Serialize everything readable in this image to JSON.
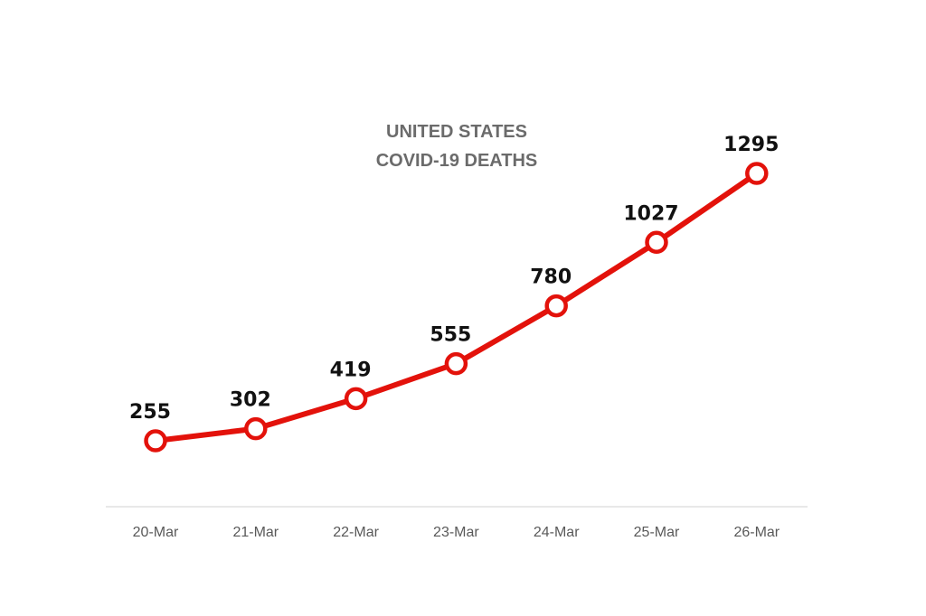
{
  "chart_data": {
    "type": "line",
    "title": [
      "UNITED STATES",
      "COVID-19 DEATHS"
    ],
    "xlabel": "",
    "ylabel": "",
    "categories": [
      "20-Mar",
      "21-Mar",
      "22-Mar",
      "23-Mar",
      "24-Mar",
      "25-Mar",
      "26-Mar"
    ],
    "series": [
      {
        "values": [
          255,
          302,
          419,
          555,
          780,
          1027,
          1295
        ]
      }
    ],
    "data_labels": [
      "255",
      "302",
      "419",
      "555",
      "780",
      "1027",
      "1295"
    ],
    "grid": false,
    "legend": "none"
  },
  "colors": {
    "line": "#e3120b",
    "marker_fill": "#ffffff",
    "axis": "#d9d9d9",
    "title": "#6b6b6b",
    "label": "#111111",
    "tick": "#595959"
  }
}
